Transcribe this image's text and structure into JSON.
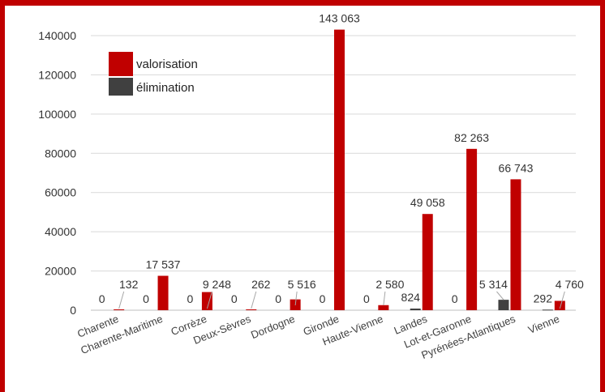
{
  "chart_data": {
    "type": "bar",
    "categories": [
      "Charente",
      "Charente-Maritime",
      "Corrèze",
      "Deux-Sèvres",
      "Dordogne",
      "Gironde",
      "Haute-Vienne",
      "Landes",
      "Lot-et-Garonne",
      "Pyrénées-Atlantiques",
      "Vienne"
    ],
    "series": [
      {
        "name": "élimination",
        "color": "#404040",
        "values": [
          0,
          0,
          0,
          0,
          0,
          0,
          0,
          824,
          0,
          5314,
          292
        ],
        "labels": [
          "0",
          "0",
          "0",
          "0",
          "0",
          "0",
          "0",
          "824",
          "0",
          "5 314",
          "292"
        ]
      },
      {
        "name": "valorisation",
        "color": "#c00000",
        "values": [
          132,
          17537,
          9248,
          262,
          5516,
          143063,
          2580,
          49058,
          82263,
          66743,
          4760
        ],
        "labels": [
          "132",
          "17 537",
          "9 248",
          "262",
          "5 516",
          "143 063",
          "2 580",
          "49 058",
          "82 263",
          "66 743",
          "4 760"
        ]
      }
    ],
    "yticks": [
      "0",
      "20000",
      "40000",
      "60000",
      "80000",
      "100000",
      "120000",
      "140000"
    ],
    "ylim": [
      0,
      140000
    ],
    "grid": true,
    "legend": "top-left",
    "title": "",
    "xlabel": "",
    "ylabel": ""
  },
  "colors": {
    "frame": "#c00000",
    "valorisation": "#c00000",
    "elimination": "#404040",
    "grid": "#d9d9d9"
  }
}
